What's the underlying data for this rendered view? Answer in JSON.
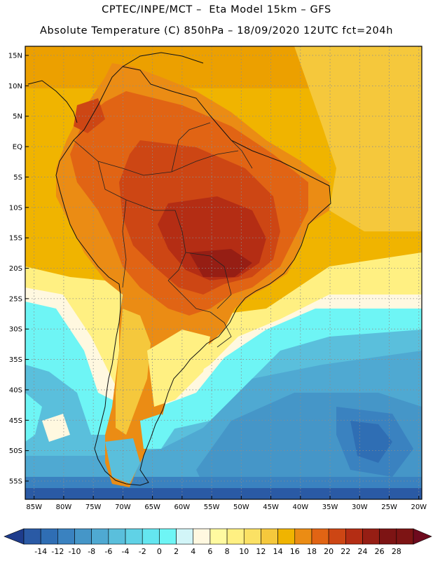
{
  "header": {
    "line1": "CPTEC/INPE/MCT –  Eta Model 15km – GFS",
    "line2": "Absolute Temperature (C) 850hPa – 18/09/2020 12UTC fct=204h"
  },
  "map": {
    "region": "South America",
    "lat_ticks": [
      "15N",
      "10N",
      "5N",
      "EQ",
      "5S",
      "10S",
      "15S",
      "20S",
      "25S",
      "30S",
      "35S",
      "40S",
      "45S",
      "50S",
      "55S"
    ],
    "lon_ticks": [
      "85W",
      "80W",
      "75W",
      "70W",
      "65W",
      "60W",
      "55W",
      "50W",
      "45W",
      "40W",
      "35W",
      "30W",
      "25W",
      "20W"
    ],
    "grid": true
  },
  "colorbar": {
    "labels": [
      "-14",
      "-12",
      "-10",
      "-8",
      "-6",
      "-4",
      "-2",
      "0",
      "2",
      "4",
      "6",
      "8",
      "10",
      "12",
      "14",
      "16",
      "18",
      "20",
      "22",
      "24",
      "26",
      "28"
    ],
    "colors": [
      "#1e3c8c",
      "#2a5aa5",
      "#2f6eb4",
      "#3a82c0",
      "#4596c8",
      "#4fa9d2",
      "#5abfdc",
      "#60d2e6",
      "#64e6f0",
      "#6ef5f5",
      "#d2f5f8",
      "#fff8e0",
      "#fffaa0",
      "#fff082",
      "#fbe164",
      "#f5c83c",
      "#f0b400",
      "#eb8c14",
      "#e16414",
      "#cd4614",
      "#b42d14",
      "#961e14",
      "#7d1414",
      "#6e0a1e"
    ]
  }
}
